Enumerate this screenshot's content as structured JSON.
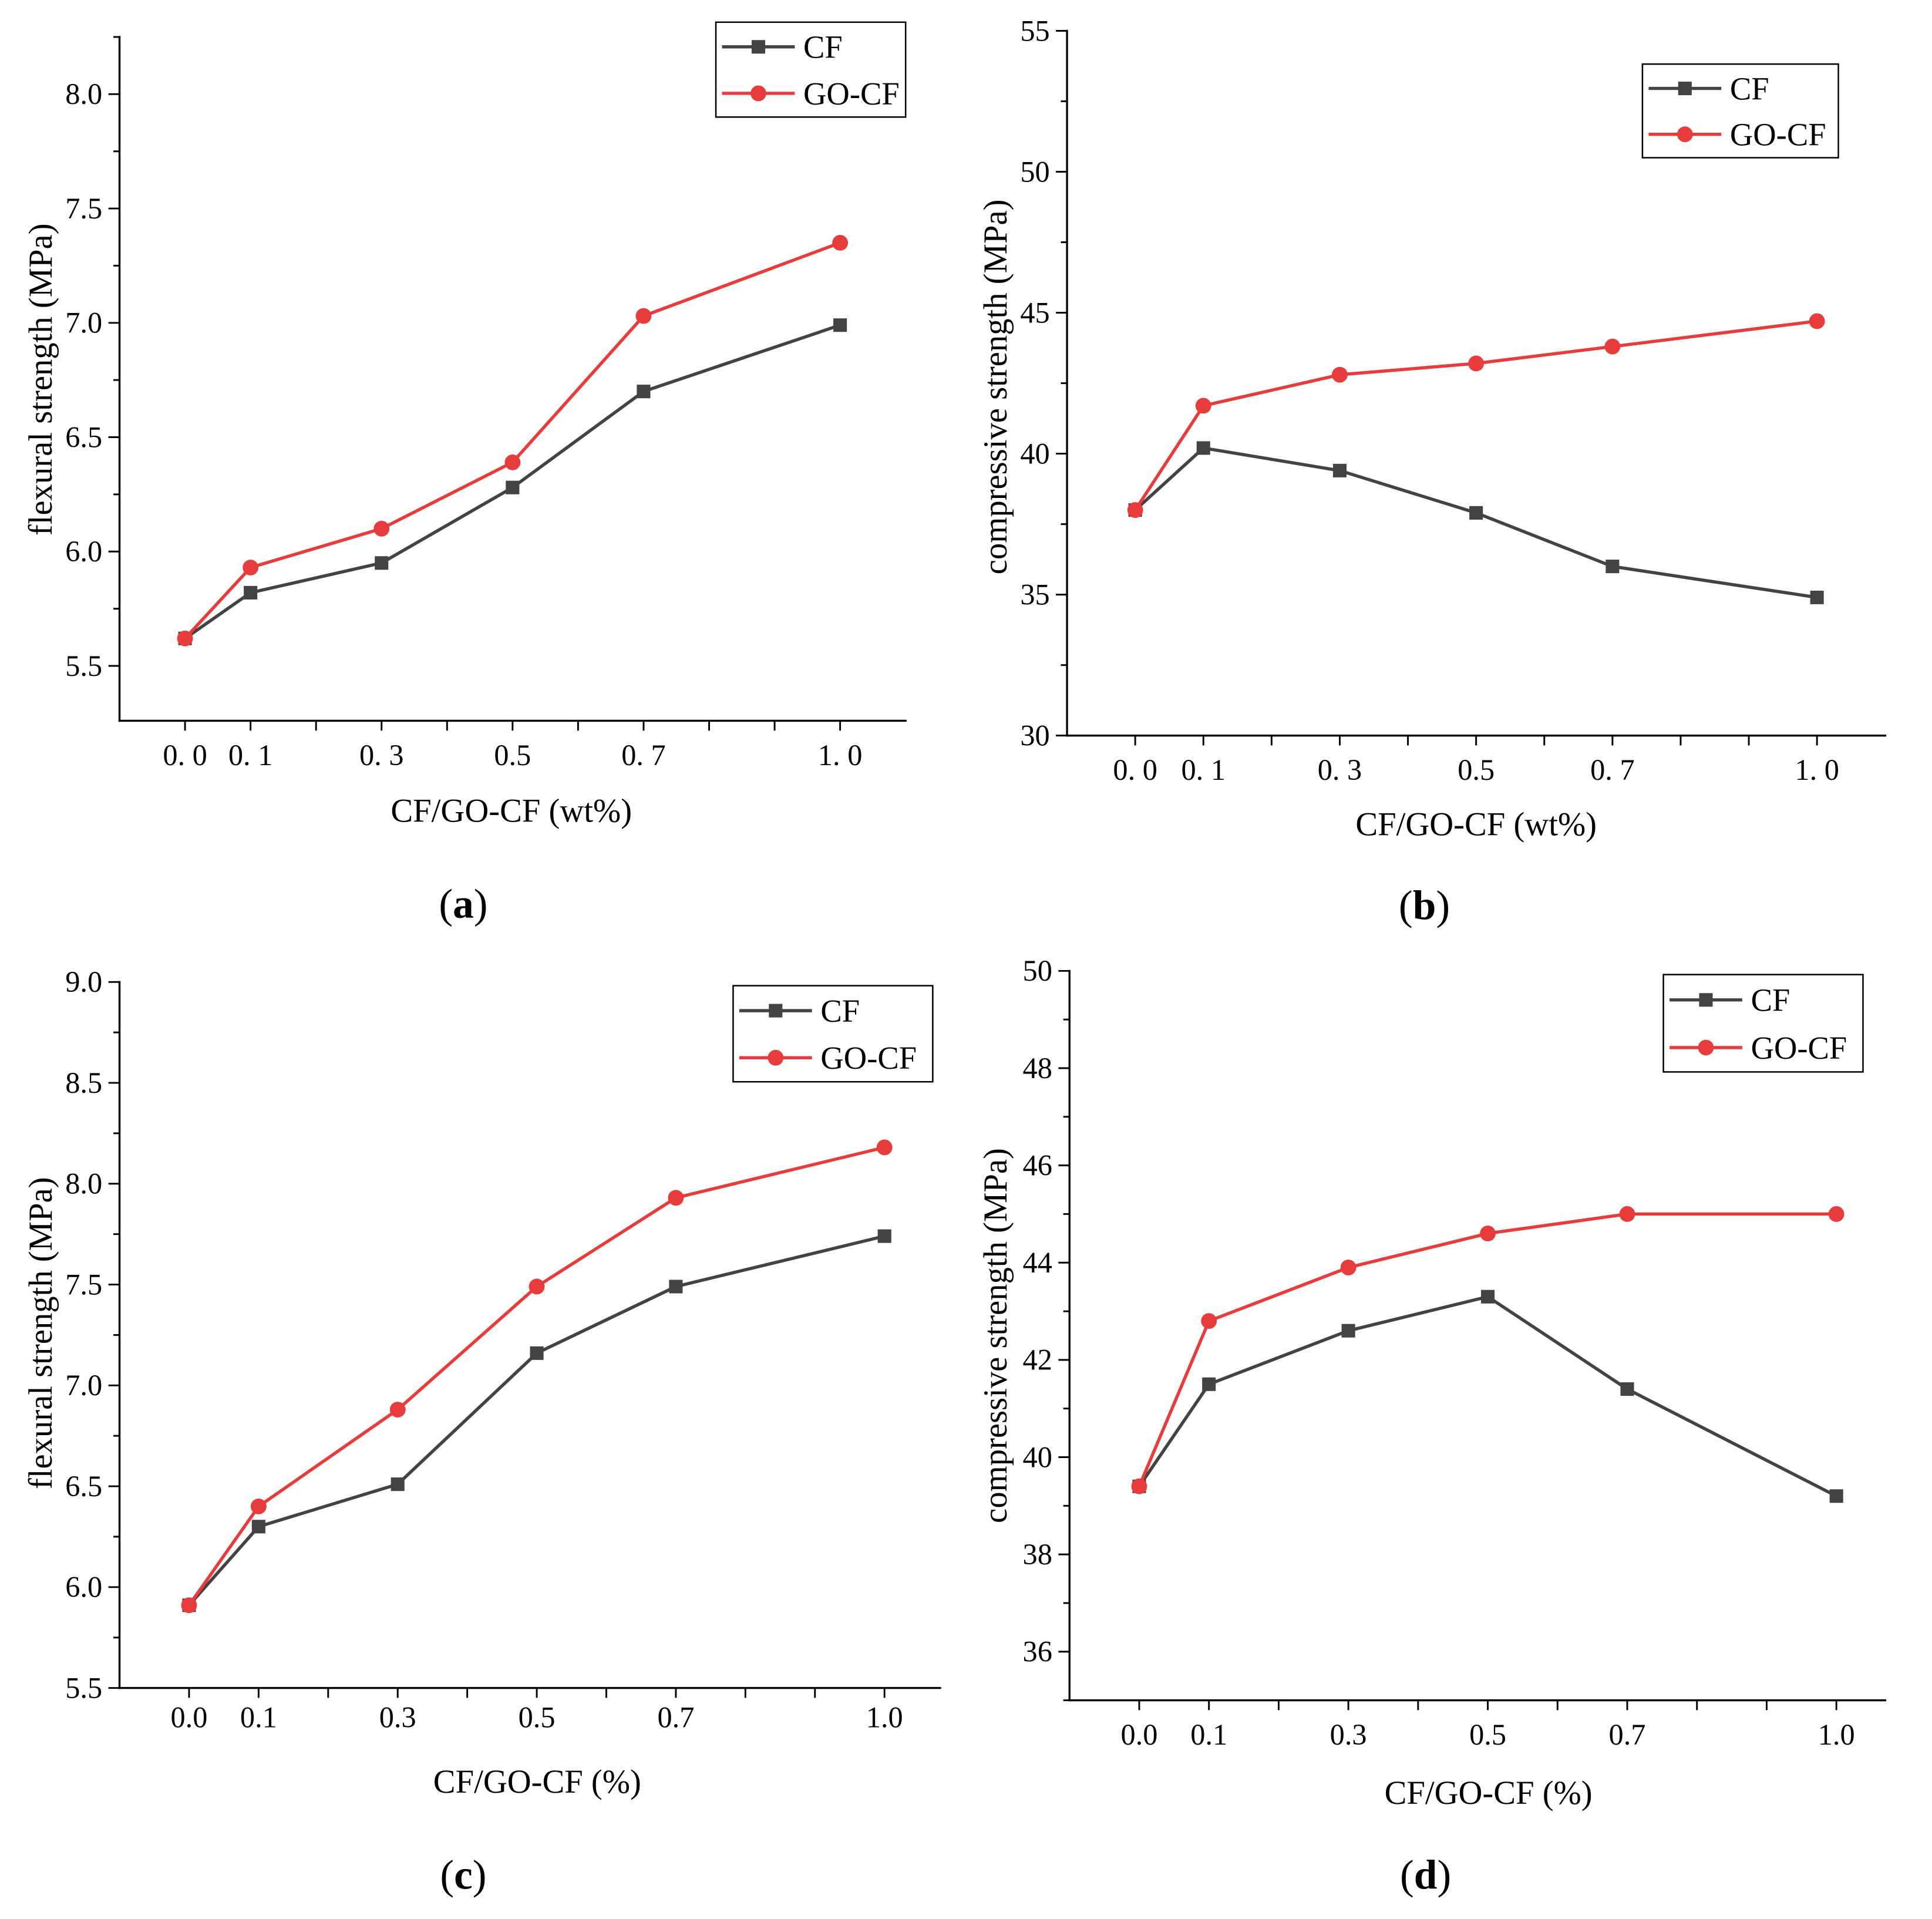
{
  "chart_data": [
    {
      "type": "line",
      "panel_label": "(a)",
      "xlabel": "CF/GO-CF (wt%)",
      "ylabel": "flexural strength (MPa)",
      "x": [
        0.0,
        0.1,
        0.3,
        0.5,
        0.7,
        1.0
      ],
      "xticks": [
        0.0,
        0.1,
        0.3,
        0.5,
        0.7,
        1.0
      ],
      "xtick_labels": [
        "0. 0",
        "0. 1",
        "0. 3",
        "0.5",
        "0. 7",
        "1. 0"
      ],
      "xtick_mark_step": 0.1,
      "xlim": [
        -0.1,
        1.1
      ],
      "ylim": [
        5.26,
        8.25
      ],
      "yticks": [
        5.5,
        6.0,
        6.5,
        7.0,
        7.5,
        8.0
      ],
      "ytick_labels": [
        "5.5",
        "6.0",
        "6.5",
        "7.0",
        "7.5",
        "8.0"
      ],
      "yminor_step": 0.25,
      "grid": false,
      "legend": "top-right",
      "series": [
        {
          "name": "CF",
          "marker": "square",
          "color": "#434343",
          "values": [
            5.62,
            5.82,
            5.95,
            6.28,
            6.7,
            6.99
          ]
        },
        {
          "name": "GO-CF",
          "marker": "circle",
          "color": "#e83c3c",
          "values": [
            5.62,
            5.93,
            6.1,
            6.39,
            7.03,
            7.35
          ]
        }
      ]
    },
    {
      "type": "line",
      "panel_label": "(b)",
      "xlabel": "CF/GO-CF (wt%)",
      "ylabel": "compressive strength (MPa)",
      "x": [
        0.0,
        0.1,
        0.3,
        0.5,
        0.7,
        1.0
      ],
      "xticks": [
        0.0,
        0.1,
        0.3,
        0.5,
        0.7,
        1.0
      ],
      "xtick_labels": [
        "0. 0",
        "0. 1",
        "0. 3",
        "0.5",
        "0. 7",
        "1. 0"
      ],
      "xtick_mark_step": 0.1,
      "xlim": [
        -0.1,
        1.1
      ],
      "ylim": [
        30,
        55
      ],
      "yticks": [
        30,
        35,
        40,
        45,
        50,
        55
      ],
      "ytick_labels": [
        "30",
        "35",
        "40",
        "45",
        "50",
        "55"
      ],
      "yminor_step": 2.5,
      "grid": false,
      "legend": "top-right",
      "series": [
        {
          "name": "CF",
          "marker": "square",
          "color": "#434343",
          "values": [
            38.0,
            40.2,
            39.4,
            37.9,
            36.0,
            34.9
          ]
        },
        {
          "name": "GO-CF",
          "marker": "circle",
          "color": "#e83c3c",
          "values": [
            38.0,
            41.7,
            42.8,
            43.2,
            43.8,
            44.7
          ]
        }
      ]
    },
    {
      "type": "line",
      "panel_label": "(c)",
      "xlabel": "CF/GO-CF (%)",
      "ylabel": "flexural strength (MPa)",
      "x": [
        0.0,
        0.1,
        0.3,
        0.5,
        0.7,
        1.0
      ],
      "xticks": [
        0.0,
        0.1,
        0.3,
        0.5,
        0.7,
        1.0
      ],
      "xtick_labels": [
        "0.0",
        "0.1",
        "0.3",
        "0.5",
        "0.7",
        "1.0"
      ],
      "xtick_mark_step": 0.1,
      "xlim": [
        -0.1,
        1.08
      ],
      "ylim": [
        5.5,
        9.0
      ],
      "yticks": [
        5.5,
        6.0,
        6.5,
        7.0,
        7.5,
        8.0,
        8.5,
        9.0
      ],
      "ytick_labels": [
        "5.5",
        "6.0",
        "6.5",
        "7.0",
        "7.5",
        "8.0",
        "8.5",
        "9.0"
      ],
      "yminor_step": 0.25,
      "grid": false,
      "legend": "top-right",
      "series": [
        {
          "name": "CF",
          "marker": "square",
          "color": "#434343",
          "values": [
            5.91,
            6.3,
            6.51,
            7.16,
            7.49,
            7.74
          ]
        },
        {
          "name": "GO-CF",
          "marker": "circle",
          "color": "#e83c3c",
          "values": [
            5.91,
            6.4,
            6.88,
            7.49,
            7.93,
            8.18
          ]
        }
      ]
    },
    {
      "type": "line",
      "panel_label": "(d)",
      "xlabel": "CF/GO-CF (%)",
      "ylabel": "compressive strength (MPa)",
      "x": [
        0.0,
        0.1,
        0.3,
        0.5,
        0.7,
        1.0
      ],
      "xticks": [
        0.0,
        0.1,
        0.3,
        0.5,
        0.7,
        1.0
      ],
      "xtick_labels": [
        "0.0",
        "0.1",
        "0.3",
        "0.5",
        "0.7",
        "1.0"
      ],
      "xtick_mark_step": 0.1,
      "xlim": [
        -0.1,
        1.07
      ],
      "ylim": [
        35,
        50
      ],
      "yticks": [
        36,
        38,
        40,
        42,
        44,
        46,
        48,
        50
      ],
      "ytick_labels": [
        "36",
        "38",
        "40",
        "42",
        "44",
        "46",
        "48",
        "50"
      ],
      "yminor_step": 1,
      "grid": false,
      "legend": "top-right",
      "series": [
        {
          "name": "CF",
          "marker": "square",
          "color": "#434343",
          "values": [
            39.4,
            41.5,
            42.6,
            43.3,
            41.4,
            39.2
          ]
        },
        {
          "name": "GO-CF",
          "marker": "circle",
          "color": "#e83c3c",
          "values": [
            39.4,
            42.8,
            43.9,
            44.6,
            45.0,
            45.0
          ]
        }
      ]
    }
  ]
}
